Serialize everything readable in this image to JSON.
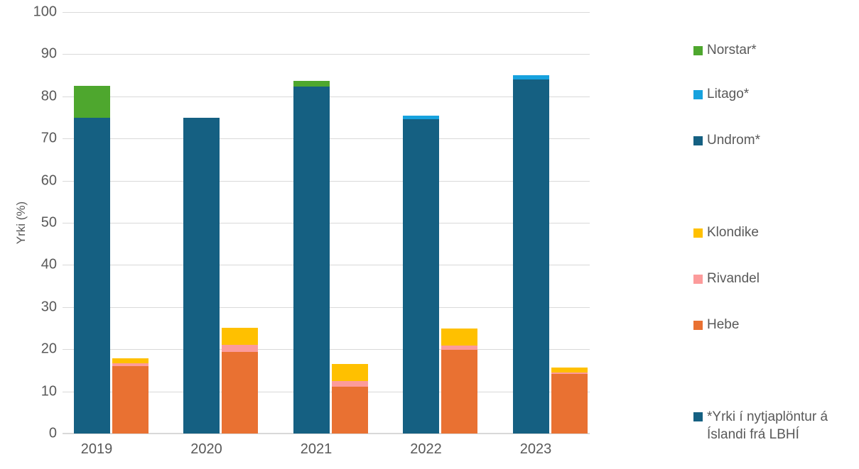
{
  "chart_data": {
    "type": "bar",
    "stacked": true,
    "title": "",
    "ylabel": "Yrki  (%)",
    "ylim": [
      0,
      100
    ],
    "yticks": [
      0,
      10,
      20,
      30,
      40,
      50,
      60,
      70,
      80,
      90,
      100
    ],
    "grid": true,
    "legend_position": "right",
    "categories": [
      "2019",
      "2020",
      "2021",
      "2022",
      "2023"
    ],
    "bar_groups": [
      {
        "name": "lbhi-varieties-stack",
        "series": [
          {
            "name": "Undrom*",
            "color": "#156082",
            "values": [
              75,
              75,
              82.3,
              74.6,
              84
            ]
          },
          {
            "name": "Litago*",
            "color": "#17A2DE",
            "values": [
              0,
              0,
              0,
              0.8,
              1
            ]
          },
          {
            "name": "Norstar*",
            "color": "#4EA72E",
            "values": [
              7.5,
              0,
              1.3,
              0,
              0
            ]
          }
        ]
      },
      {
        "name": "other-varieties-stack",
        "series": [
          {
            "name": "Hebe",
            "color": "#E97132",
            "values": [
              16,
              19.4,
              11.1,
              19.8,
              14.1
            ]
          },
          {
            "name": "Rivandel",
            "color": "#FC9B9B",
            "values": [
              0.7,
              1.7,
              1.4,
              1.1,
              0.4
            ]
          },
          {
            "name": "Klondike",
            "color": "#FFC000",
            "values": [
              1.1,
              4,
              4,
              4.1,
              1.1
            ]
          }
        ]
      }
    ]
  },
  "legend": {
    "items": [
      {
        "label": "Norstar*",
        "color": "#4EA72E"
      },
      {
        "label": "Litago*",
        "color": "#17A2DE"
      },
      {
        "label": "Undrom*",
        "color": "#156082"
      },
      {
        "label": "Klondike",
        "color": "#FFC000"
      },
      {
        "label": "Rivandel",
        "color": "#FC9B9B"
      },
      {
        "label": "Hebe",
        "color": "#E97132"
      }
    ],
    "footnote": {
      "label": "*Yrki í nytjaplöntur á Íslandi frá LBHÍ",
      "color": "#156082"
    }
  },
  "axis": {
    "text_color": "#595959",
    "gridline_color": "#D9D9D9"
  }
}
